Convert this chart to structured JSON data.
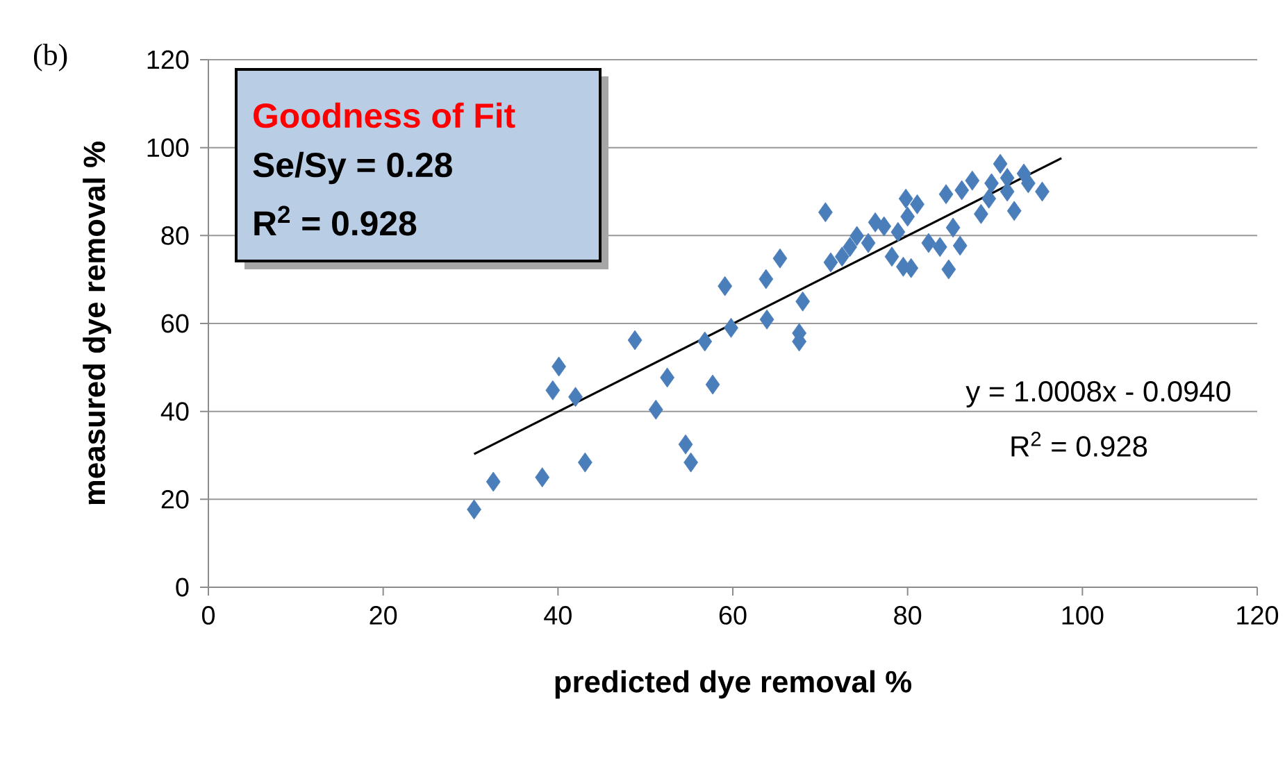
{
  "chart_data": {
    "type": "scatter",
    "xlabel": "predicted dye removal %",
    "ylabel": "measured dye removal  %",
    "xlim": [
      0,
      120
    ],
    "ylim": [
      0,
      120
    ],
    "xticks": [
      0,
      20,
      40,
      60,
      80,
      100,
      120
    ],
    "yticks": [
      0,
      20,
      40,
      60,
      80,
      100,
      120
    ],
    "grid": "y",
    "marker": "diamond",
    "series": [
      {
        "color": "#4a7ebb",
        "x": [
          30.4,
          32.6,
          38.2,
          40.1,
          39.4,
          42.0,
          43.1,
          48.8,
          51.2,
          52.5,
          54.6,
          55.2,
          56.8,
          57.7,
          59.1,
          59.8,
          63.8,
          63.9,
          65.4,
          67.6,
          67.6,
          68.0,
          70.6,
          71.2,
          72.5,
          73.4,
          74.2,
          75.5,
          76.3,
          77.3,
          78.2,
          78.9,
          79.5,
          79.8,
          80.0,
          80.4,
          81.1,
          82.4,
          83.7,
          84.7,
          84.4,
          85.2,
          86.0,
          86.2,
          87.4,
          88.4,
          89.3,
          90.6,
          91.4,
          92.2,
          93.3,
          93.8,
          95.4,
          89.6,
          91.4
        ],
        "values": [
          17.7,
          24.0,
          25.0,
          50.2,
          44.8,
          43.3,
          28.4,
          56.2,
          40.4,
          47.7,
          32.5,
          28.4,
          55.9,
          46.1,
          68.5,
          59.0,
          70.1,
          60.9,
          74.8,
          57.8,
          55.9,
          65.0,
          85.3,
          73.9,
          75.2,
          77.4,
          79.9,
          78.3,
          83.0,
          82.1,
          75.2,
          80.8,
          72.9,
          88.4,
          84.3,
          72.6,
          87.1,
          78.3,
          77.4,
          72.3,
          89.4,
          81.8,
          77.7,
          90.3,
          92.5,
          84.9,
          88.4,
          96.3,
          90.0,
          85.6,
          94.1,
          91.9,
          90.0,
          91.9,
          93.1
        ]
      },
      {
        "type": "line",
        "color": "#000000",
        "marker": "none",
        "line_style": "solid",
        "x": [
          30.4,
          97.6
        ],
        "values": [
          30.3,
          97.6
        ]
      }
    ],
    "annotations": [
      "(b)",
      "Goodness of Fit",
      "Se/Sy  = 0.28",
      "R$^{2}$         = 0.928",
      "y = 1.0008x - 0.0940",
      "R$^{2}$ = 0.928"
    ]
  }
}
